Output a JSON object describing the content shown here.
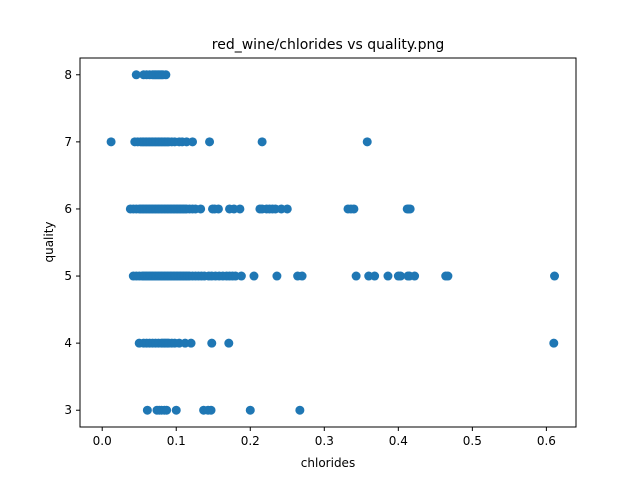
{
  "chart_data": {
    "type": "scatter",
    "title": "red_wine/chlorides vs quality.png",
    "xlabel": "chlorides",
    "ylabel": "quality",
    "xlim": [
      -0.03,
      0.64
    ],
    "ylim": [
      2.75,
      8.25
    ],
    "xticks": [
      0.0,
      0.1,
      0.2,
      0.3,
      0.4,
      0.5,
      0.6
    ],
    "xtick_labels": [
      "0.0",
      "0.1",
      "0.2",
      "0.3",
      "0.4",
      "0.5",
      "0.6"
    ],
    "yticks": [
      3,
      4,
      5,
      6,
      7,
      8
    ],
    "ytick_labels": [
      "3",
      "4",
      "5",
      "6",
      "7",
      "8"
    ],
    "grid": false,
    "marker_color": "#1f77b4",
    "points": [
      [
        0.046,
        8
      ],
      [
        0.056,
        8
      ],
      [
        0.06,
        8
      ],
      [
        0.064,
        8
      ],
      [
        0.068,
        8
      ],
      [
        0.07,
        8
      ],
      [
        0.072,
        8
      ],
      [
        0.074,
        8
      ],
      [
        0.076,
        8
      ],
      [
        0.078,
        8
      ],
      [
        0.08,
        8
      ],
      [
        0.082,
        8
      ],
      [
        0.086,
        8
      ],
      [
        0.012,
        7
      ],
      [
        0.044,
        7
      ],
      [
        0.048,
        7
      ],
      [
        0.052,
        7
      ],
      [
        0.054,
        7
      ],
      [
        0.056,
        7
      ],
      [
        0.058,
        7
      ],
      [
        0.06,
        7
      ],
      [
        0.062,
        7
      ],
      [
        0.064,
        7
      ],
      [
        0.066,
        7
      ],
      [
        0.068,
        7
      ],
      [
        0.07,
        7
      ],
      [
        0.072,
        7
      ],
      [
        0.074,
        7
      ],
      [
        0.076,
        7
      ],
      [
        0.078,
        7
      ],
      [
        0.08,
        7
      ],
      [
        0.082,
        7
      ],
      [
        0.084,
        7
      ],
      [
        0.086,
        7
      ],
      [
        0.088,
        7
      ],
      [
        0.09,
        7
      ],
      [
        0.094,
        7
      ],
      [
        0.098,
        7
      ],
      [
        0.104,
        7
      ],
      [
        0.108,
        7
      ],
      [
        0.114,
        7
      ],
      [
        0.122,
        7
      ],
      [
        0.145,
        7
      ],
      [
        0.216,
        7
      ],
      [
        0.358,
        7
      ],
      [
        0.038,
        6
      ],
      [
        0.042,
        6
      ],
      [
        0.046,
        6
      ],
      [
        0.05,
        6
      ],
      [
        0.052,
        6
      ],
      [
        0.054,
        6
      ],
      [
        0.056,
        6
      ],
      [
        0.058,
        6
      ],
      [
        0.06,
        6
      ],
      [
        0.062,
        6
      ],
      [
        0.064,
        6
      ],
      [
        0.066,
        6
      ],
      [
        0.068,
        6
      ],
      [
        0.07,
        6
      ],
      [
        0.072,
        6
      ],
      [
        0.074,
        6
      ],
      [
        0.076,
        6
      ],
      [
        0.078,
        6
      ],
      [
        0.08,
        6
      ],
      [
        0.082,
        6
      ],
      [
        0.084,
        6
      ],
      [
        0.086,
        6
      ],
      [
        0.088,
        6
      ],
      [
        0.09,
        6
      ],
      [
        0.092,
        6
      ],
      [
        0.094,
        6
      ],
      [
        0.096,
        6
      ],
      [
        0.098,
        6
      ],
      [
        0.1,
        6
      ],
      [
        0.102,
        6
      ],
      [
        0.104,
        6
      ],
      [
        0.106,
        6
      ],
      [
        0.108,
        6
      ],
      [
        0.11,
        6
      ],
      [
        0.112,
        6
      ],
      [
        0.114,
        6
      ],
      [
        0.118,
        6
      ],
      [
        0.122,
        6
      ],
      [
        0.126,
        6
      ],
      [
        0.133,
        6
      ],
      [
        0.149,
        6
      ],
      [
        0.152,
        6
      ],
      [
        0.157,
        6
      ],
      [
        0.172,
        6
      ],
      [
        0.178,
        6
      ],
      [
        0.186,
        6
      ],
      [
        0.213,
        6
      ],
      [
        0.216,
        6
      ],
      [
        0.222,
        6
      ],
      [
        0.226,
        6
      ],
      [
        0.23,
        6
      ],
      [
        0.234,
        6
      ],
      [
        0.242,
        6
      ],
      [
        0.25,
        6
      ],
      [
        0.332,
        6
      ],
      [
        0.336,
        6
      ],
      [
        0.34,
        6
      ],
      [
        0.412,
        6
      ],
      [
        0.414,
        6
      ],
      [
        0.416,
        6
      ],
      [
        0.042,
        5
      ],
      [
        0.046,
        5
      ],
      [
        0.05,
        5
      ],
      [
        0.054,
        5
      ],
      [
        0.056,
        5
      ],
      [
        0.058,
        5
      ],
      [
        0.06,
        5
      ],
      [
        0.062,
        5
      ],
      [
        0.064,
        5
      ],
      [
        0.066,
        5
      ],
      [
        0.068,
        5
      ],
      [
        0.07,
        5
      ],
      [
        0.072,
        5
      ],
      [
        0.074,
        5
      ],
      [
        0.076,
        5
      ],
      [
        0.078,
        5
      ],
      [
        0.08,
        5
      ],
      [
        0.082,
        5
      ],
      [
        0.084,
        5
      ],
      [
        0.086,
        5
      ],
      [
        0.088,
        5
      ],
      [
        0.09,
        5
      ],
      [
        0.092,
        5
      ],
      [
        0.094,
        5
      ],
      [
        0.096,
        5
      ],
      [
        0.098,
        5
      ],
      [
        0.1,
        5
      ],
      [
        0.102,
        5
      ],
      [
        0.104,
        5
      ],
      [
        0.106,
        5
      ],
      [
        0.108,
        5
      ],
      [
        0.11,
        5
      ],
      [
        0.112,
        5
      ],
      [
        0.114,
        5
      ],
      [
        0.116,
        5
      ],
      [
        0.118,
        5
      ],
      [
        0.122,
        5
      ],
      [
        0.126,
        5
      ],
      [
        0.13,
        5
      ],
      [
        0.134,
        5
      ],
      [
        0.138,
        5
      ],
      [
        0.144,
        5
      ],
      [
        0.148,
        5
      ],
      [
        0.153,
        5
      ],
      [
        0.158,
        5
      ],
      [
        0.163,
        5
      ],
      [
        0.168,
        5
      ],
      [
        0.172,
        5
      ],
      [
        0.176,
        5
      ],
      [
        0.18,
        5
      ],
      [
        0.188,
        5
      ],
      [
        0.205,
        5
      ],
      [
        0.236,
        5
      ],
      [
        0.264,
        5
      ],
      [
        0.27,
        5
      ],
      [
        0.343,
        5
      ],
      [
        0.36,
        5
      ],
      [
        0.368,
        5
      ],
      [
        0.386,
        5
      ],
      [
        0.4,
        5
      ],
      [
        0.403,
        5
      ],
      [
        0.413,
        5
      ],
      [
        0.415,
        5
      ],
      [
        0.422,
        5
      ],
      [
        0.464,
        5
      ],
      [
        0.467,
        5
      ],
      [
        0.611,
        5
      ],
      [
        0.05,
        4
      ],
      [
        0.056,
        4
      ],
      [
        0.06,
        4
      ],
      [
        0.064,
        4
      ],
      [
        0.068,
        4
      ],
      [
        0.072,
        4
      ],
      [
        0.076,
        4
      ],
      [
        0.08,
        4
      ],
      [
        0.082,
        4
      ],
      [
        0.084,
        4
      ],
      [
        0.086,
        4
      ],
      [
        0.088,
        4
      ],
      [
        0.09,
        4
      ],
      [
        0.094,
        4
      ],
      [
        0.098,
        4
      ],
      [
        0.104,
        4
      ],
      [
        0.112,
        4
      ],
      [
        0.12,
        4
      ],
      [
        0.148,
        4
      ],
      [
        0.171,
        4
      ],
      [
        0.61,
        4
      ],
      [
        0.061,
        3
      ],
      [
        0.074,
        3
      ],
      [
        0.077,
        3
      ],
      [
        0.08,
        3
      ],
      [
        0.084,
        3
      ],
      [
        0.087,
        3
      ],
      [
        0.1,
        3
      ],
      [
        0.137,
        3
      ],
      [
        0.143,
        3
      ],
      [
        0.147,
        3
      ],
      [
        0.2,
        3
      ],
      [
        0.267,
        3
      ]
    ]
  }
}
